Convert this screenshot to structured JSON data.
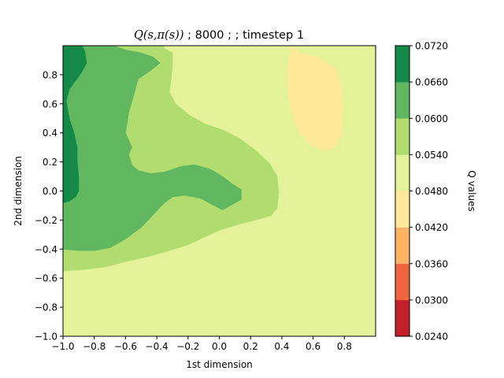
{
  "chart_data": {
    "type": "heatmap",
    "subtype": "filled-contour",
    "title": {
      "math_part": "Q(s,π(s))",
      "rest": " ;  8000 ;  ; timestep 1"
    },
    "xlabel": "1st dimension",
    "ylabel": "2nd dimension",
    "colorbar_label": "Q values",
    "xlim": [
      -1.0,
      1.0
    ],
    "ylim": [
      -1.0,
      1.0
    ],
    "x_ticks": [
      -1.0,
      -0.8,
      -0.6,
      -0.4,
      -0.2,
      0.0,
      0.2,
      0.4,
      0.6,
      0.8
    ],
    "x_tick_labels": [
      "−1.0",
      "−0.8",
      "−0.6",
      "−0.4",
      "−0.2",
      "0.0",
      "0.2",
      "0.4",
      "0.6",
      "0.8"
    ],
    "y_ticks": [
      -1.0,
      -0.8,
      -0.6,
      -0.4,
      -0.2,
      0.0,
      0.2,
      0.4,
      0.6,
      0.8
    ],
    "y_tick_labels": [
      "−1.0",
      "−0.8",
      "−0.6",
      "−0.4",
      "−0.2",
      "0.0",
      "0.2",
      "0.4",
      "0.6",
      "0.8"
    ],
    "levels": [
      0.024,
      0.03,
      0.036,
      0.042,
      0.048,
      0.054,
      0.06,
      0.066,
      0.072
    ],
    "level_labels": [
      "0.0240",
      "0.0300",
      "0.0360",
      "0.0420",
      "0.0480",
      "0.0540",
      "0.0600",
      "0.0660",
      "0.0720"
    ],
    "colormap": "RdYlGn",
    "colors": [
      "#c3202b",
      "#f16440",
      "#fdb365",
      "#fee899",
      "#e4f39a",
      "#b1dd70",
      "#60b760",
      "#138a48"
    ],
    "regions": [
      {
        "band": 0,
        "points": [
          [
            0.38,
            -1
          ],
          [
            0.43,
            -0.91
          ],
          [
            0.5,
            -0.86
          ],
          [
            0.58,
            -0.83
          ],
          [
            0.67,
            -0.82
          ],
          [
            0.77,
            -0.85
          ],
          [
            0.86,
            -0.89
          ],
          [
            0.93,
            -0.92
          ],
          [
            1,
            -0.96
          ],
          [
            1,
            -1
          ]
        ]
      },
      {
        "band": 1,
        "points": [
          [
            0.12,
            -1
          ],
          [
            0.18,
            -0.94
          ],
          [
            0.26,
            -0.87
          ],
          [
            0.35,
            -0.8
          ],
          [
            0.46,
            -0.74
          ],
          [
            0.57,
            -0.72
          ],
          [
            0.68,
            -0.72
          ],
          [
            0.77,
            -0.73
          ],
          [
            0.85,
            -0.76
          ],
          [
            0.93,
            -0.8
          ],
          [
            1,
            -0.82
          ],
          [
            1,
            -1
          ]
        ]
      },
      {
        "band": 2,
        "points": [
          [
            -0.12,
            -1
          ],
          [
            -0.04,
            -0.94
          ],
          [
            0.06,
            -0.86
          ],
          [
            0.16,
            -0.78
          ],
          [
            0.26,
            -0.7
          ],
          [
            0.36,
            -0.63
          ],
          [
            0.46,
            -0.6
          ],
          [
            0.58,
            -0.59
          ],
          [
            0.68,
            -0.61
          ],
          [
            0.78,
            -0.65
          ],
          [
            0.88,
            -0.68
          ],
          [
            0.95,
            -0.7
          ],
          [
            1,
            -0.71
          ],
          [
            1,
            -1
          ]
        ]
      },
      {
        "band": 3,
        "points": [
          [
            -1,
            -1
          ],
          [
            -1,
            -0.96
          ],
          [
            -0.9,
            -0.92
          ],
          [
            -0.78,
            -0.88
          ],
          [
            -0.64,
            -0.82
          ],
          [
            -0.5,
            -0.76
          ],
          [
            -0.36,
            -0.69
          ],
          [
            -0.2,
            -0.62
          ],
          [
            -0.05,
            -0.55
          ],
          [
            0.08,
            -0.49
          ],
          [
            0.2,
            -0.44
          ],
          [
            0.32,
            -0.39
          ],
          [
            0.42,
            -0.34
          ],
          [
            0.52,
            -0.31
          ],
          [
            0.62,
            -0.29
          ],
          [
            0.7,
            -0.26
          ],
          [
            0.8,
            -0.22
          ],
          [
            0.9,
            -0.17
          ],
          [
            1,
            -0.14
          ],
          [
            1,
            -1
          ]
        ]
      },
      {
        "band": 4,
        "points": [
          [
            -1,
            -1
          ],
          [
            -1,
            -0.67
          ],
          [
            -0.9,
            -0.64
          ],
          [
            -0.76,
            -0.6
          ],
          [
            -0.6,
            -0.58
          ],
          [
            -0.46,
            -0.53
          ],
          [
            -0.3,
            -0.48
          ],
          [
            -0.15,
            -0.43
          ],
          [
            0,
            -0.39
          ],
          [
            0.14,
            -0.35
          ],
          [
            0.25,
            -0.3
          ],
          [
            0.36,
            -0.24
          ],
          [
            0.46,
            -0.18
          ],
          [
            0.54,
            -0.13
          ],
          [
            0.62,
            -0.08
          ],
          [
            0.7,
            -0.04
          ],
          [
            0.78,
            -0.01
          ],
          [
            0.86,
            -0.02
          ],
          [
            0.93,
            -0.05
          ],
          [
            1,
            -0.08
          ],
          [
            1,
            -1
          ]
        ]
      },
      {
        "band": 3,
        "points": [
          [
            0.46,
            0.99
          ],
          [
            0.52,
            0.95
          ],
          [
            0.63,
            0.92
          ],
          [
            0.75,
            0.84
          ],
          [
            0.78,
            0.7
          ],
          [
            0.79,
            0.55
          ],
          [
            0.78,
            0.4
          ],
          [
            0.74,
            0.3
          ],
          [
            0.67,
            0.28
          ],
          [
            0.58,
            0.32
          ],
          [
            0.5,
            0.42
          ],
          [
            0.46,
            0.55
          ],
          [
            0.44,
            0.7
          ],
          [
            0.44,
            0.85
          ]
        ]
      },
      {
        "band": 5,
        "points": [
          [
            -0.8,
            1
          ],
          [
            -0.36,
            1
          ],
          [
            -0.35,
            0.98
          ],
          [
            -0.3,
            0.95
          ],
          [
            -0.3,
            0.86
          ],
          [
            -0.31,
            0.76
          ],
          [
            -0.32,
            0.68
          ],
          [
            -0.28,
            0.6
          ],
          [
            -0.19,
            0.52
          ],
          [
            -0.09,
            0.46
          ],
          [
            0.02,
            0.42
          ],
          [
            0.13,
            0.36
          ],
          [
            0.23,
            0.28
          ],
          [
            0.32,
            0.19
          ],
          [
            0.37,
            0.1
          ],
          [
            0.38,
            -0.01
          ],
          [
            0.37,
            -0.12
          ],
          [
            0.33,
            -0.17
          ],
          [
            0.23,
            -0.2
          ],
          [
            0.12,
            -0.23
          ],
          [
            0,
            -0.27
          ],
          [
            -0.1,
            -0.32
          ],
          [
            -0.2,
            -0.37
          ],
          [
            -0.32,
            -0.41
          ],
          [
            -0.45,
            -0.45
          ],
          [
            -0.58,
            -0.48
          ],
          [
            -0.72,
            -0.52
          ],
          [
            -0.86,
            -0.54
          ],
          [
            -1,
            -0.55
          ],
          [
            -1,
            1
          ]
        ]
      },
      {
        "band": 6,
        "points": [
          [
            -0.8,
            1
          ],
          [
            -0.68,
            1
          ],
          [
            -0.6,
            0.97
          ],
          [
            -0.5,
            0.95
          ],
          [
            -0.42,
            0.92
          ],
          [
            -0.38,
            0.88
          ],
          [
            -0.44,
            0.83
          ],
          [
            -0.52,
            0.77
          ],
          [
            -0.55,
            0.65
          ],
          [
            -0.58,
            0.54
          ],
          [
            -0.6,
            0.4
          ],
          [
            -0.56,
            0.3
          ],
          [
            -0.58,
            0.25
          ],
          [
            -0.56,
            0.18
          ],
          [
            -0.52,
            0.14
          ],
          [
            -0.44,
            0.12
          ],
          [
            -0.35,
            0.13
          ],
          [
            -0.24,
            0.17
          ],
          [
            -0.16,
            0.18
          ],
          [
            -0.06,
            0.15
          ],
          [
            0.02,
            0.1
          ],
          [
            0.08,
            0.05
          ],
          [
            0.14,
            0.01
          ],
          [
            0.14,
            -0.06
          ],
          [
            0.07,
            -0.1
          ],
          [
            0.02,
            -0.13
          ],
          [
            -0.05,
            -0.09
          ],
          [
            -0.12,
            -0.05
          ],
          [
            -0.22,
            -0.03
          ],
          [
            -0.3,
            -0.04
          ],
          [
            -0.36,
            -0.09
          ],
          [
            -0.42,
            -0.16
          ],
          [
            -0.5,
            -0.25
          ],
          [
            -0.6,
            -0.33
          ],
          [
            -0.7,
            -0.39
          ],
          [
            -0.8,
            -0.41
          ],
          [
            -0.9,
            -0.41
          ],
          [
            -1,
            -0.4
          ],
          [
            -1,
            1
          ]
        ]
      },
      {
        "band": 7,
        "points": [
          [
            -1,
            1
          ],
          [
            -0.88,
            1
          ],
          [
            -0.86,
            0.96
          ],
          [
            -0.85,
            0.88
          ],
          [
            -0.88,
            0.82
          ],
          [
            -0.92,
            0.76
          ],
          [
            -0.96,
            0.7
          ],
          [
            -0.98,
            0.62
          ],
          [
            -0.96,
            0.5
          ],
          [
            -0.93,
            0.4
          ],
          [
            -0.91,
            0.3
          ],
          [
            -0.91,
            0.2
          ],
          [
            -0.9,
            0.1
          ],
          [
            -0.9,
            0
          ],
          [
            -0.92,
            -0.04
          ],
          [
            -0.96,
            -0.07
          ],
          [
            -1,
            -0.08
          ]
        ]
      }
    ],
    "grid": false
  }
}
